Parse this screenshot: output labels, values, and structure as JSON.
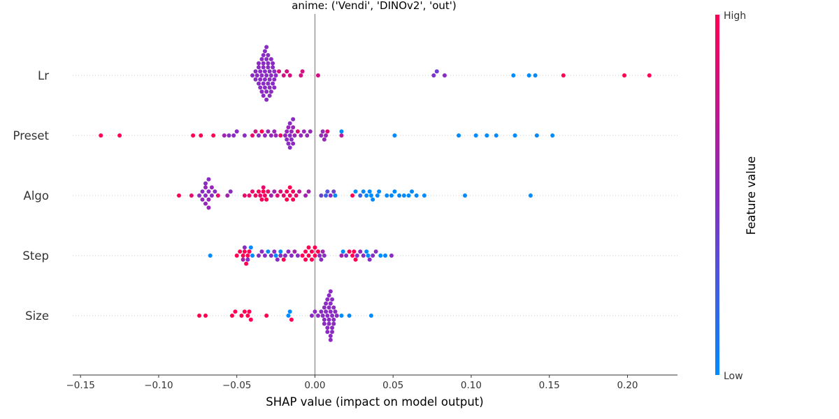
{
  "chart_data": {
    "type": "scatter",
    "subtype": "shap_beeswarm",
    "title": "anime: ('Vendi', 'DINOv2', 'out')",
    "xlabel": "SHAP value (impact on model output)",
    "xlim": [
      -0.155,
      0.232
    ],
    "xticks": [
      -0.15,
      -0.1,
      -0.05,
      0.0,
      0.05,
      0.1,
      0.15,
      0.2
    ],
    "xtick_labels": [
      "−0.15",
      "−0.10",
      "−0.05",
      "0.00",
      "0.05",
      "0.10",
      "0.15",
      "0.20"
    ],
    "features": [
      "Lr",
      "Preset",
      "Algo",
      "Step",
      "Size"
    ],
    "colorbar": {
      "label": "Feature value",
      "high_label": "High",
      "low_label": "Low",
      "low_color": "#008afb",
      "mid_color": "#8a2bc2",
      "high_color": "#ff0052"
    },
    "series": [
      {
        "name": "Lr",
        "points": [
          [
            -0.04,
            0.5
          ],
          [
            -0.038,
            0.5
          ],
          [
            -0.037,
            0.5
          ],
          [
            -0.036,
            0.5
          ],
          [
            -0.035,
            0.5
          ],
          [
            -0.034,
            0.5
          ],
          [
            -0.033,
            0.5
          ],
          [
            -0.032,
            0.5
          ],
          [
            -0.031,
            0.5
          ],
          [
            -0.03,
            0.5
          ],
          [
            -0.029,
            0.5
          ],
          [
            -0.028,
            0.5
          ],
          [
            -0.027,
            0.5
          ],
          [
            -0.026,
            0.5
          ],
          [
            -0.025,
            0.5
          ],
          [
            -0.036,
            0.5
          ],
          [
            -0.034,
            0.5
          ],
          [
            -0.033,
            0.5
          ],
          [
            -0.032,
            0.5
          ],
          [
            -0.031,
            0.5
          ],
          [
            -0.03,
            0.5
          ],
          [
            -0.029,
            0.5
          ],
          [
            -0.028,
            0.5
          ],
          [
            -0.026,
            0.5
          ],
          [
            -0.035,
            0.5
          ],
          [
            -0.033,
            0.5
          ],
          [
            -0.031,
            0.5
          ],
          [
            -0.029,
            0.5
          ],
          [
            -0.027,
            0.5
          ],
          [
            -0.032,
            0.5
          ],
          [
            -0.03,
            0.5
          ],
          [
            -0.038,
            0.5
          ],
          [
            -0.036,
            0.5
          ],
          [
            -0.034,
            0.5
          ],
          [
            -0.032,
            0.5
          ],
          [
            -0.03,
            0.5
          ],
          [
            -0.028,
            0.5
          ],
          [
            -0.026,
            0.5
          ],
          [
            -0.035,
            0.5
          ],
          [
            -0.033,
            0.5
          ],
          [
            -0.031,
            0.5
          ],
          [
            -0.029,
            0.5
          ],
          [
            -0.027,
            0.5
          ],
          [
            -0.033,
            0.5
          ],
          [
            -0.031,
            0.5
          ],
          [
            -0.023,
            0.8
          ],
          [
            -0.02,
            0.8
          ],
          [
            -0.018,
            0.8
          ],
          [
            -0.016,
            0.8
          ],
          [
            -0.009,
            0.8
          ],
          [
            -0.008,
            0.8
          ],
          [
            0.002,
            0.8
          ],
          [
            0.076,
            0.45
          ],
          [
            0.078,
            0.4
          ],
          [
            0.083,
            0.5
          ],
          [
            0.127,
            0.0
          ],
          [
            0.137,
            0.0
          ],
          [
            0.141,
            0.0
          ],
          [
            0.159,
            1.0
          ],
          [
            0.198,
            1.0
          ],
          [
            0.214,
            1.0
          ]
        ]
      },
      {
        "name": "Preset",
        "points": [
          [
            -0.137,
            1.0
          ],
          [
            -0.125,
            1.0
          ],
          [
            -0.078,
            1.0
          ],
          [
            -0.073,
            1.0
          ],
          [
            -0.065,
            1.0
          ],
          [
            -0.058,
            0.6
          ],
          [
            -0.055,
            0.5
          ],
          [
            -0.052,
            0.5
          ],
          [
            -0.05,
            0.5
          ],
          [
            -0.045,
            0.5
          ],
          [
            -0.04,
            0.9
          ],
          [
            -0.038,
            0.8
          ],
          [
            -0.036,
            0.5
          ],
          [
            -0.034,
            1.0
          ],
          [
            -0.032,
            0.55
          ],
          [
            -0.03,
            0.55
          ],
          [
            -0.028,
            0.55
          ],
          [
            -0.026,
            0.55
          ],
          [
            -0.025,
            0.55
          ],
          [
            -0.022,
            0.9
          ],
          [
            -0.019,
            0.55
          ],
          [
            -0.018,
            0.55
          ],
          [
            -0.017,
            0.55
          ],
          [
            -0.016,
            0.5
          ],
          [
            -0.015,
            0.55
          ],
          [
            -0.014,
            0.55
          ],
          [
            -0.013,
            0.55
          ],
          [
            -0.017,
            0.5
          ],
          [
            -0.016,
            0.5
          ],
          [
            -0.015,
            0.5
          ],
          [
            -0.014,
            0.5
          ],
          [
            -0.018,
            0.5
          ],
          [
            -0.016,
            0.5
          ],
          [
            -0.014,
            0.5
          ],
          [
            -0.011,
            0.85
          ],
          [
            -0.009,
            0.55
          ],
          [
            -0.007,
            0.55
          ],
          [
            -0.005,
            0.55
          ],
          [
            -0.003,
            0.55
          ],
          [
            0.004,
            0.55
          ],
          [
            0.005,
            0.55
          ],
          [
            0.006,
            0.55
          ],
          [
            0.007,
            0.55
          ],
          [
            0.008,
            0.85
          ],
          [
            0.017,
            0.7
          ],
          [
            0.017,
            0.0
          ],
          [
            0.051,
            0.0
          ],
          [
            0.092,
            0.0
          ],
          [
            0.103,
            0.0
          ],
          [
            0.11,
            0.0
          ],
          [
            0.116,
            0.0
          ],
          [
            0.128,
            0.0
          ],
          [
            0.142,
            0.0
          ],
          [
            0.152,
            0.0
          ]
        ]
      },
      {
        "name": "Algo",
        "points": [
          [
            -0.087,
            1.0
          ],
          [
            -0.079,
            0.9
          ],
          [
            -0.074,
            0.5
          ],
          [
            -0.072,
            0.5
          ],
          [
            -0.07,
            0.5
          ],
          [
            -0.068,
            0.5
          ],
          [
            -0.066,
            0.5
          ],
          [
            -0.064,
            0.5
          ],
          [
            -0.072,
            0.55
          ],
          [
            -0.07,
            0.55
          ],
          [
            -0.068,
            0.55
          ],
          [
            -0.066,
            0.55
          ],
          [
            -0.07,
            0.55
          ],
          [
            -0.068,
            0.55
          ],
          [
            -0.07,
            0.5
          ],
          [
            -0.068,
            0.5
          ],
          [
            -0.062,
            0.9
          ],
          [
            -0.056,
            0.6
          ],
          [
            -0.054,
            0.5
          ],
          [
            -0.045,
            0.9
          ],
          [
            -0.042,
            0.9
          ],
          [
            -0.04,
            0.9
          ],
          [
            -0.038,
            0.95
          ],
          [
            -0.036,
            0.95
          ],
          [
            -0.034,
            0.95
          ],
          [
            -0.032,
            0.95
          ],
          [
            -0.03,
            0.9
          ],
          [
            -0.033,
            1.0
          ],
          [
            -0.031,
            1.0
          ],
          [
            -0.035,
            0.9
          ],
          [
            -0.033,
            0.9
          ],
          [
            -0.028,
            0.6
          ],
          [
            -0.026,
            0.6
          ],
          [
            -0.024,
            0.85
          ],
          [
            -0.022,
            0.85
          ],
          [
            -0.02,
            0.9
          ],
          [
            -0.018,
            0.95
          ],
          [
            -0.016,
            0.95
          ],
          [
            -0.014,
            0.95
          ],
          [
            -0.012,
            0.9
          ],
          [
            -0.018,
            1.0
          ],
          [
            -0.016,
            1.0
          ],
          [
            -0.014,
            1.0
          ],
          [
            -0.01,
            0.7
          ],
          [
            -0.006,
            0.6
          ],
          [
            -0.004,
            0.6
          ],
          [
            0.004,
            0.4
          ],
          [
            0.007,
            0.2
          ],
          [
            0.008,
            0.3
          ],
          [
            0.01,
            0.5
          ],
          [
            0.012,
            0.4
          ],
          [
            0.013,
            0.0
          ],
          [
            0.024,
            1.0
          ],
          [
            0.026,
            0.0
          ],
          [
            0.029,
            0.2
          ],
          [
            0.031,
            0.0
          ],
          [
            0.033,
            0.0
          ],
          [
            0.035,
            0.0
          ],
          [
            0.036,
            0.0
          ],
          [
            0.037,
            0.0
          ],
          [
            0.04,
            0.0
          ],
          [
            0.041,
            0.0
          ],
          [
            0.046,
            0.0
          ],
          [
            0.049,
            0.0
          ],
          [
            0.051,
            0.0
          ],
          [
            0.054,
            0.0
          ],
          [
            0.057,
            0.0
          ],
          [
            0.06,
            0.0
          ],
          [
            0.062,
            0.0
          ],
          [
            0.065,
            0.0
          ],
          [
            0.07,
            0.0
          ],
          [
            0.096,
            0.0
          ],
          [
            0.138,
            0.0
          ]
        ]
      },
      {
        "name": "Step",
        "points": [
          [
            -0.067,
            0.0
          ],
          [
            -0.05,
            1.0
          ],
          [
            -0.048,
            1.0
          ],
          [
            -0.046,
            1.0
          ],
          [
            -0.045,
            1.0
          ],
          [
            -0.044,
            1.0
          ],
          [
            -0.043,
            1.0
          ],
          [
            -0.042,
            1.0
          ],
          [
            -0.041,
            0.0
          ],
          [
            -0.045,
            0.5
          ],
          [
            -0.043,
            0.5
          ],
          [
            -0.046,
            0.6
          ],
          [
            -0.04,
            0.0
          ],
          [
            -0.036,
            0.5
          ],
          [
            -0.034,
            0.5
          ],
          [
            -0.032,
            0.5
          ],
          [
            -0.03,
            0.0
          ],
          [
            -0.028,
            0.5
          ],
          [
            -0.026,
            0.5
          ],
          [
            -0.024,
            0.5
          ],
          [
            -0.022,
            0.5
          ],
          [
            -0.02,
            1.0
          ],
          [
            -0.025,
            0.0
          ],
          [
            -0.022,
            0.0
          ],
          [
            -0.019,
            0.5
          ],
          [
            -0.017,
            0.5
          ],
          [
            -0.015,
            0.5
          ],
          [
            -0.013,
            0.6
          ],
          [
            -0.011,
            0.5
          ],
          [
            -0.008,
            1.0
          ],
          [
            -0.006,
            1.0
          ],
          [
            -0.004,
            1.0
          ],
          [
            -0.002,
            1.0
          ],
          [
            0.0,
            1.0
          ],
          [
            -0.006,
            1.0
          ],
          [
            -0.004,
            1.0
          ],
          [
            -0.002,
            1.0
          ],
          [
            0.0,
            1.0
          ],
          [
            0.002,
            1.0
          ],
          [
            0.003,
            0.5
          ],
          [
            0.004,
            0.5
          ],
          [
            0.005,
            0.6
          ],
          [
            0.006,
            0.5
          ],
          [
            0.017,
            0.6
          ],
          [
            0.018,
            0.0
          ],
          [
            0.02,
            0.5
          ],
          [
            0.022,
            1.0
          ],
          [
            0.024,
            1.0
          ],
          [
            0.025,
            1.0
          ],
          [
            0.026,
            1.0
          ],
          [
            0.027,
            0.5
          ],
          [
            0.029,
            0.5
          ],
          [
            0.031,
            0.5
          ],
          [
            0.033,
            0.0
          ],
          [
            0.034,
            0.0
          ],
          [
            0.035,
            0.5
          ],
          [
            0.037,
            0.5
          ],
          [
            0.039,
            0.5
          ],
          [
            0.042,
            0.0
          ],
          [
            0.045,
            0.0
          ],
          [
            0.049,
            0.5
          ]
        ]
      },
      {
        "name": "Size",
        "points": [
          [
            -0.074,
            1.0
          ],
          [
            -0.07,
            1.0
          ],
          [
            -0.053,
            1.0
          ],
          [
            -0.051,
            1.0
          ],
          [
            -0.047,
            1.0
          ],
          [
            -0.045,
            1.0
          ],
          [
            -0.043,
            1.0
          ],
          [
            -0.042,
            1.0
          ],
          [
            -0.041,
            1.0
          ],
          [
            -0.031,
            1.0
          ],
          [
            -0.017,
            0.0
          ],
          [
            -0.016,
            0.0
          ],
          [
            -0.015,
            1.0
          ],
          [
            -0.002,
            0.5
          ],
          [
            0.0,
            0.5
          ],
          [
            0.002,
            0.5
          ],
          [
            0.004,
            0.5
          ],
          [
            0.006,
            0.5
          ],
          [
            0.008,
            0.5
          ],
          [
            0.01,
            0.5
          ],
          [
            0.012,
            0.5
          ],
          [
            0.014,
            0.5
          ],
          [
            0.005,
            0.5
          ],
          [
            0.007,
            0.5
          ],
          [
            0.009,
            0.5
          ],
          [
            0.011,
            0.5
          ],
          [
            0.013,
            0.5
          ],
          [
            0.006,
            0.5
          ],
          [
            0.008,
            0.5
          ],
          [
            0.01,
            0.5
          ],
          [
            0.012,
            0.5
          ],
          [
            0.007,
            0.5
          ],
          [
            0.009,
            0.5
          ],
          [
            0.011,
            0.5
          ],
          [
            0.008,
            0.5
          ],
          [
            0.01,
            0.5
          ],
          [
            0.009,
            0.5
          ],
          [
            0.011,
            0.5
          ],
          [
            0.006,
            0.5
          ],
          [
            0.008,
            0.5
          ],
          [
            0.01,
            0.5
          ],
          [
            0.012,
            0.5
          ],
          [
            0.009,
            0.5
          ],
          [
            0.011,
            0.5
          ],
          [
            0.01,
            0.5
          ],
          [
            0.017,
            0.0
          ],
          [
            0.022,
            0.0
          ],
          [
            0.036,
            0.0
          ]
        ]
      }
    ]
  }
}
